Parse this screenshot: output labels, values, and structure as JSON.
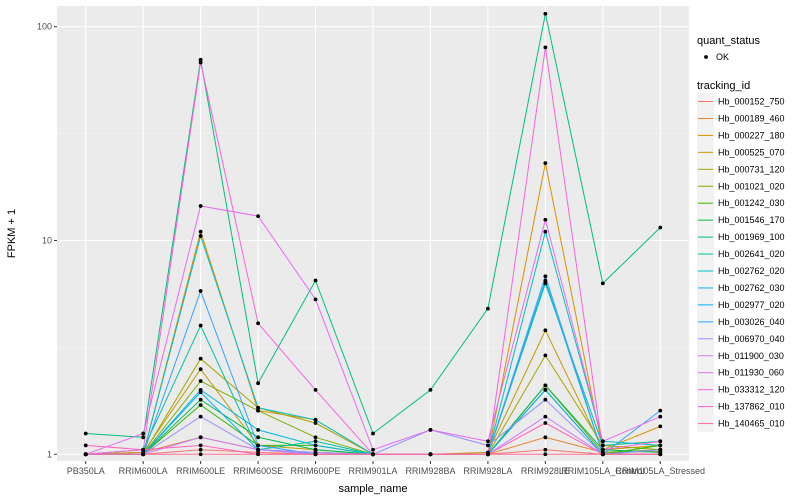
{
  "chart_data": {
    "type": "line",
    "xlabel": "sample_name",
    "ylabel": "FPKM + 1",
    "y_scale": "log10",
    "ylim": [
      0.93,
      125
    ],
    "y_ticks": [
      1,
      10,
      100
    ],
    "grid": true,
    "legend_position": "right",
    "categories": [
      "PB350LA",
      "RRIM600LA",
      "RRIM600LE",
      "RRIM600SE",
      "RRIM600PE",
      "RRIM901LA",
      "RRIM928BA",
      "RRIM928LA",
      "RRIM928LE",
      "RRIM105LA_Control",
      "RRIM105LA_Stressed"
    ],
    "quant_status_title": "quant_status",
    "quant_status_entries": [
      "OK"
    ],
    "series_title": "tracking_id",
    "series": [
      {
        "name": "Hb_000152_750",
        "color": "#F8766D",
        "values": [
          1.0,
          1.0,
          1.05,
          1.02,
          1.0,
          1.0,
          1.0,
          1.0,
          1.05,
          1.0,
          1.0
        ]
      },
      {
        "name": "Hb_000189_460",
        "color": "#EA8331",
        "values": [
          1.0,
          1.02,
          1.2,
          1.05,
          1.02,
          1.0,
          1.0,
          1.0,
          1.2,
          1.02,
          1.03
        ]
      },
      {
        "name": "Hb_000227_180",
        "color": "#D89000",
        "values": [
          1.0,
          1.0,
          11.0,
          1.6,
          1.45,
          1.0,
          1.0,
          1.0,
          23.0,
          1.05,
          1.35
        ]
      },
      {
        "name": "Hb_000525_070",
        "color": "#C09B00",
        "values": [
          1.0,
          1.02,
          2.5,
          1.1,
          1.05,
          1.0,
          1.0,
          1.02,
          3.8,
          1.05,
          1.1
        ]
      },
      {
        "name": "Hb_000731_120",
        "color": "#A3A500",
        "values": [
          1.0,
          1.0,
          2.8,
          1.65,
          1.4,
          1.0,
          1.0,
          1.0,
          2.9,
          1.1,
          1.05
        ]
      },
      {
        "name": "Hb_001021_020",
        "color": "#7CAE00",
        "values": [
          1.0,
          1.0,
          2.2,
          1.6,
          1.2,
          1.0,
          1.0,
          1.0,
          2.1,
          1.02,
          1.05
        ]
      },
      {
        "name": "Hb_001242_030",
        "color": "#39B600",
        "values": [
          1.0,
          1.0,
          1.7,
          1.1,
          1.1,
          1.0,
          1.0,
          1.0,
          2.0,
          1.0,
          1.1
        ]
      },
      {
        "name": "Hb_001546_170",
        "color": "#00BB4E",
        "values": [
          1.0,
          1.0,
          1.8,
          1.2,
          1.05,
          1.0,
          1.0,
          1.0,
          2.1,
          1.05,
          1.02
        ]
      },
      {
        "name": "Hb_001969_100",
        "color": "#00BF7D",
        "values": [
          1.25,
          1.2,
          70.0,
          2.15,
          6.5,
          1.25,
          2.0,
          4.8,
          115.0,
          6.3,
          11.5
        ]
      },
      {
        "name": "Hb_002641_020",
        "color": "#00C1A3",
        "values": [
          1.0,
          1.05,
          4.0,
          1.05,
          1.15,
          1.0,
          1.0,
          1.0,
          6.3,
          1.1,
          1.15
        ]
      },
      {
        "name": "Hb_002762_020",
        "color": "#00BFC4",
        "values": [
          1.0,
          1.0,
          10.5,
          1.65,
          1.45,
          1.0,
          1.0,
          1.0,
          11.0,
          1.15,
          1.1
        ]
      },
      {
        "name": "Hb_002762_030",
        "color": "#00BAE0",
        "values": [
          1.0,
          1.0,
          2.0,
          1.3,
          1.1,
          1.0,
          1.0,
          1.0,
          6.5,
          1.0,
          1.05
        ]
      },
      {
        "name": "Hb_002977_020",
        "color": "#00B0F6",
        "values": [
          1.0,
          1.0,
          1.95,
          1.05,
          1.0,
          1.0,
          1.0,
          1.0,
          2.0,
          1.0,
          1.0
        ]
      },
      {
        "name": "Hb_003026_040",
        "color": "#35A2FF",
        "values": [
          1.0,
          1.0,
          5.8,
          1.1,
          1.0,
          1.0,
          1.0,
          1.0,
          6.8,
          1.0,
          1.6
        ]
      },
      {
        "name": "Hb_006970_040",
        "color": "#9590FF",
        "values": [
          1.0,
          1.0,
          1.5,
          1.05,
          1.02,
          1.0,
          1.3,
          1.1,
          1.8,
          1.0,
          1.05
        ]
      },
      {
        "name": "Hb_011900_030",
        "color": "#C77CFF",
        "values": [
          1.0,
          1.0,
          1.2,
          1.05,
          1.0,
          1.0,
          1.0,
          1.0,
          1.5,
          1.0,
          1.0
        ]
      },
      {
        "name": "Hb_011930_060",
        "color": "#E76BF3",
        "values": [
          1.0,
          1.25,
          14.5,
          13.0,
          5.3,
          1.05,
          1.3,
          1.15,
          12.5,
          1.15,
          1.5
        ]
      },
      {
        "name": "Hb_033312_120",
        "color": "#FA62DB",
        "values": [
          1.0,
          1.05,
          68.0,
          4.1,
          2.0,
          1.0,
          1.0,
          1.0,
          80.0,
          1.05,
          1.15
        ]
      },
      {
        "name": "Hb_137862_010",
        "color": "#FF62BC",
        "values": [
          1.1,
          1.05,
          1.1,
          1.0,
          1.0,
          1.0,
          1.0,
          1.0,
          1.4,
          1.0,
          1.0
        ]
      },
      {
        "name": "Hb_140465_010",
        "color": "#FF6C91",
        "values": [
          1.0,
          1.0,
          1.0,
          1.0,
          1.0,
          1.0,
          1.0,
          1.0,
          1.0,
          1.0,
          1.0
        ]
      }
    ]
  }
}
